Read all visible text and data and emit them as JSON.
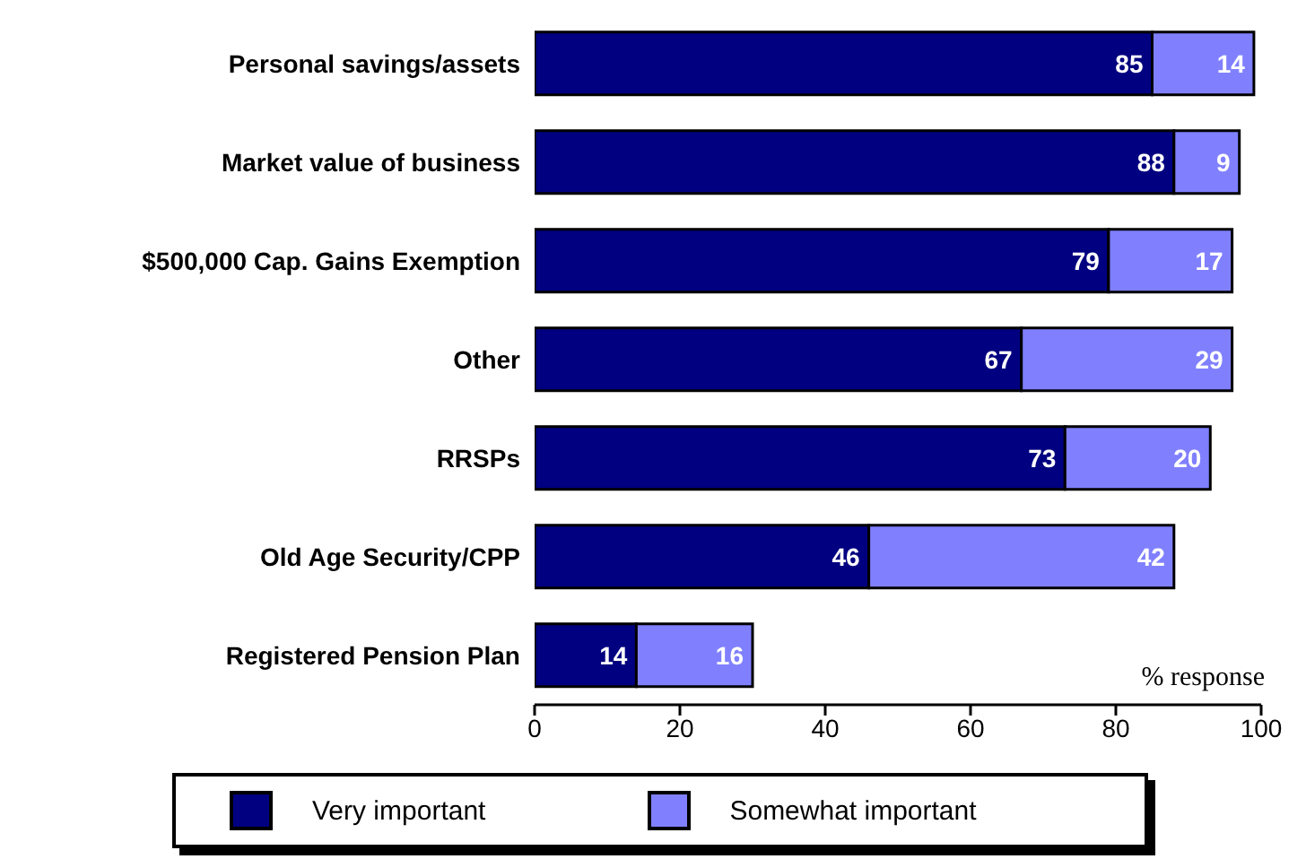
{
  "chart_data": {
    "type": "bar",
    "orientation": "horizontal",
    "stacked": true,
    "xlabel": "% response",
    "categories": [
      "Personal savings/assets",
      "Market value of business",
      "$500,000 Cap. Gains Exemption",
      "Other",
      "RRSPs",
      "Old Age Security/CPP",
      "Registered Pension Plan"
    ],
    "series": [
      {
        "name": "Very important",
        "color": "#000080",
        "values": [
          85,
          88,
          79,
          67,
          73,
          46,
          14
        ]
      },
      {
        "name": "Somewhat important",
        "color": "#8080ff",
        "values": [
          14,
          9,
          17,
          29,
          20,
          42,
          16
        ]
      }
    ],
    "xlim": [
      0,
      100
    ],
    "xticks": [
      0,
      20,
      40,
      60,
      80,
      100
    ],
    "data_labels": true,
    "legend": "bottom",
    "grid": false
  }
}
